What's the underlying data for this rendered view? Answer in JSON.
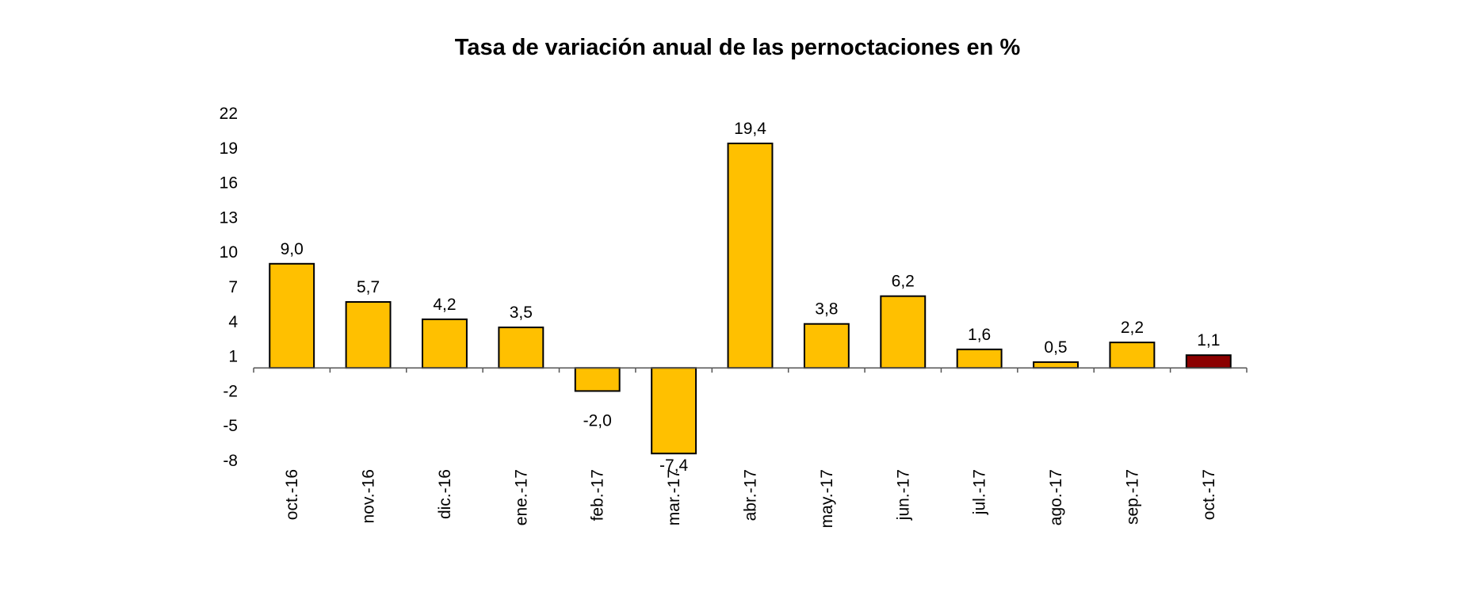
{
  "chart_data": {
    "type": "bar",
    "title": "Tasa de variación anual de las pernoctaciones en %",
    "xlabel": "",
    "ylabel": "",
    "categories": [
      "oct.-16",
      "nov.-16",
      "dic.-16",
      "ene.-17",
      "feb.-17",
      "mar.-17",
      "abr.-17",
      "may.-17",
      "jun.-17",
      "jul.-17",
      "ago.-17",
      "sep.-17",
      "oct.-17"
    ],
    "values": [
      9.0,
      5.7,
      4.2,
      3.5,
      -2.0,
      -7.4,
      19.4,
      3.8,
      6.2,
      1.6,
      0.5,
      2.2,
      1.1
    ],
    "data_labels": [
      "9,0",
      "5,7",
      "4,2",
      "3,5",
      "-2,0",
      "-7,4",
      "19,4",
      "3,8",
      "6,2",
      "1,6",
      "0,5",
      "2,2",
      "1,1"
    ],
    "yticks": [
      22,
      19,
      16,
      13,
      10,
      7,
      4,
      1,
      -2,
      -5,
      -8
    ],
    "ylim": [
      -8,
      22
    ],
    "grid": false,
    "legend": "none",
    "colors": {
      "bar": "#FFC000",
      "highlight": "#8B0000",
      "highlight_index": 12,
      "stroke": "#000000"
    }
  }
}
